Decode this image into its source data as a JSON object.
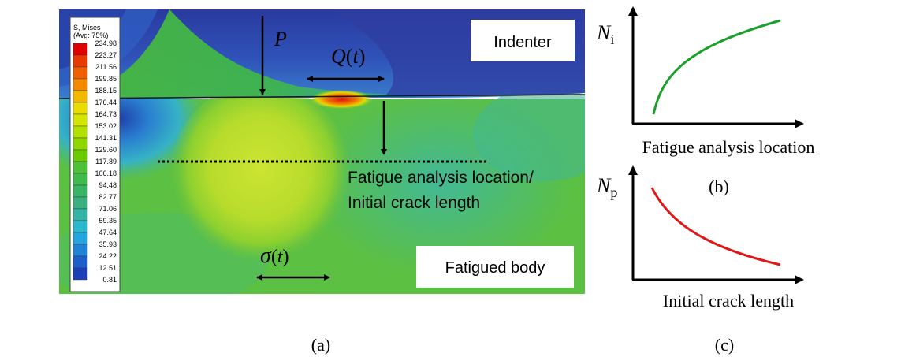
{
  "panel_a": {
    "legend": {
      "title_line1": "S, Mises",
      "title_line2": "(Avg: 75%)",
      "values": [
        "234.98",
        "223.27",
        "211.56",
        "199.85",
        "188.15",
        "176.44",
        "164.73",
        "153.02",
        "141.31",
        "129.60",
        "117.89",
        "106.18",
        "94.48",
        "82.77",
        "71.06",
        "59.35",
        "47.64",
        "35.93",
        "24.22",
        "12.51",
        "0.81"
      ],
      "colors": [
        "#e00000",
        "#e83a00",
        "#f06000",
        "#f58a00",
        "#f3b800",
        "#e8dc00",
        "#d2e600",
        "#b2e000",
        "#8ed800",
        "#6acc00",
        "#4cc238",
        "#3ebb4a",
        "#38b465",
        "#3ab080",
        "#34b4a4",
        "#2ab8cc",
        "#23a6e0",
        "#1f84d8",
        "#1c5fcc",
        "#1a3fb8",
        "#1a22a0"
      ]
    },
    "label_P": "P",
    "label_Q": "Q",
    "label_Q_arg": "t",
    "label_sigma": "σ",
    "label_sigma_arg": "t",
    "indenter_label": "Indenter",
    "body_label": "Fatigued body",
    "location_line1": "Fatigue analysis location/",
    "location_line2": "Initial crack length",
    "caption": "(a)"
  },
  "panel_b": {
    "y_symbol": "N",
    "y_subscript": "i",
    "xlabel": "Fatigue analysis location",
    "caption": "(b)",
    "curve_color": "#1aa02a"
  },
  "panel_c": {
    "y_symbol": "N",
    "y_subscript": "p",
    "xlabel": "Initial crack length",
    "caption": "(c)",
    "curve_color": "#e01818"
  },
  "colors": {
    "indenter_blue": "#2f46a8",
    "body_green": "#5cc043",
    "ellipse_yellow": "#c8e030",
    "hot_red": "#e01010"
  }
}
